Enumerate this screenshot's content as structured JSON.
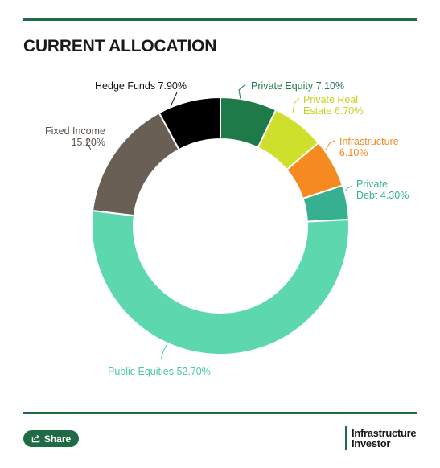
{
  "header": {
    "title": "CURRENT ALLOCATION"
  },
  "chart_data": {
    "type": "pie",
    "subtype": "donut",
    "title": "CURRENT ALLOCATION",
    "slices": [
      {
        "label": "Private Equity",
        "value": 7.1,
        "display": "7.10%",
        "color": "#1f7a4a",
        "label_color": "#1f7a4a"
      },
      {
        "label": "Private Real Estate",
        "value": 6.7,
        "display": "6.70%",
        "color": "#cfe02c",
        "label_color": "#c2d322"
      },
      {
        "label": "Infrastructure",
        "value": 6.1,
        "display": "6.10%",
        "color": "#f58a22",
        "label_color": "#f58a22"
      },
      {
        "label": "Private Debt",
        "value": 4.3,
        "display": "4.30%",
        "color": "#37b08f",
        "label_color": "#37b08f"
      },
      {
        "label": "Public Equities",
        "value": 52.7,
        "display": "52.70%",
        "color": "#5dd7ad",
        "label_color": "#4cc9a0"
      },
      {
        "label": "Fixed Income",
        "value": 15.2,
        "display": "15.20%",
        "color": "#6a5f55",
        "label_color": "#5a524b"
      },
      {
        "label": "Hedge Funds",
        "value": 7.9,
        "display": "7.90%",
        "color": "#000000",
        "label_color": "#111111"
      }
    ],
    "label_lines": [
      {
        "slice": 0,
        "lines": [
          "Private Equity 7.10%"
        ]
      },
      {
        "slice": 1,
        "lines": [
          "Private Real",
          "Estate 6.70%"
        ]
      },
      {
        "slice": 2,
        "lines": [
          "Infrastructure",
          "6.10%"
        ]
      },
      {
        "slice": 3,
        "lines": [
          "Private",
          "Debt 4.30%"
        ]
      },
      {
        "slice": 4,
        "lines": [
          "Public Equities 52.70%"
        ]
      },
      {
        "slice": 5,
        "lines": [
          "Fixed Income",
          "15.20%"
        ]
      },
      {
        "slice": 6,
        "lines": [
          "Hedge Funds 7.90%"
        ]
      }
    ]
  },
  "footer": {
    "share_label": "Share",
    "share_icon": "share-icon",
    "brand_line1": "Infrastructure",
    "brand_line2": "Investor"
  }
}
